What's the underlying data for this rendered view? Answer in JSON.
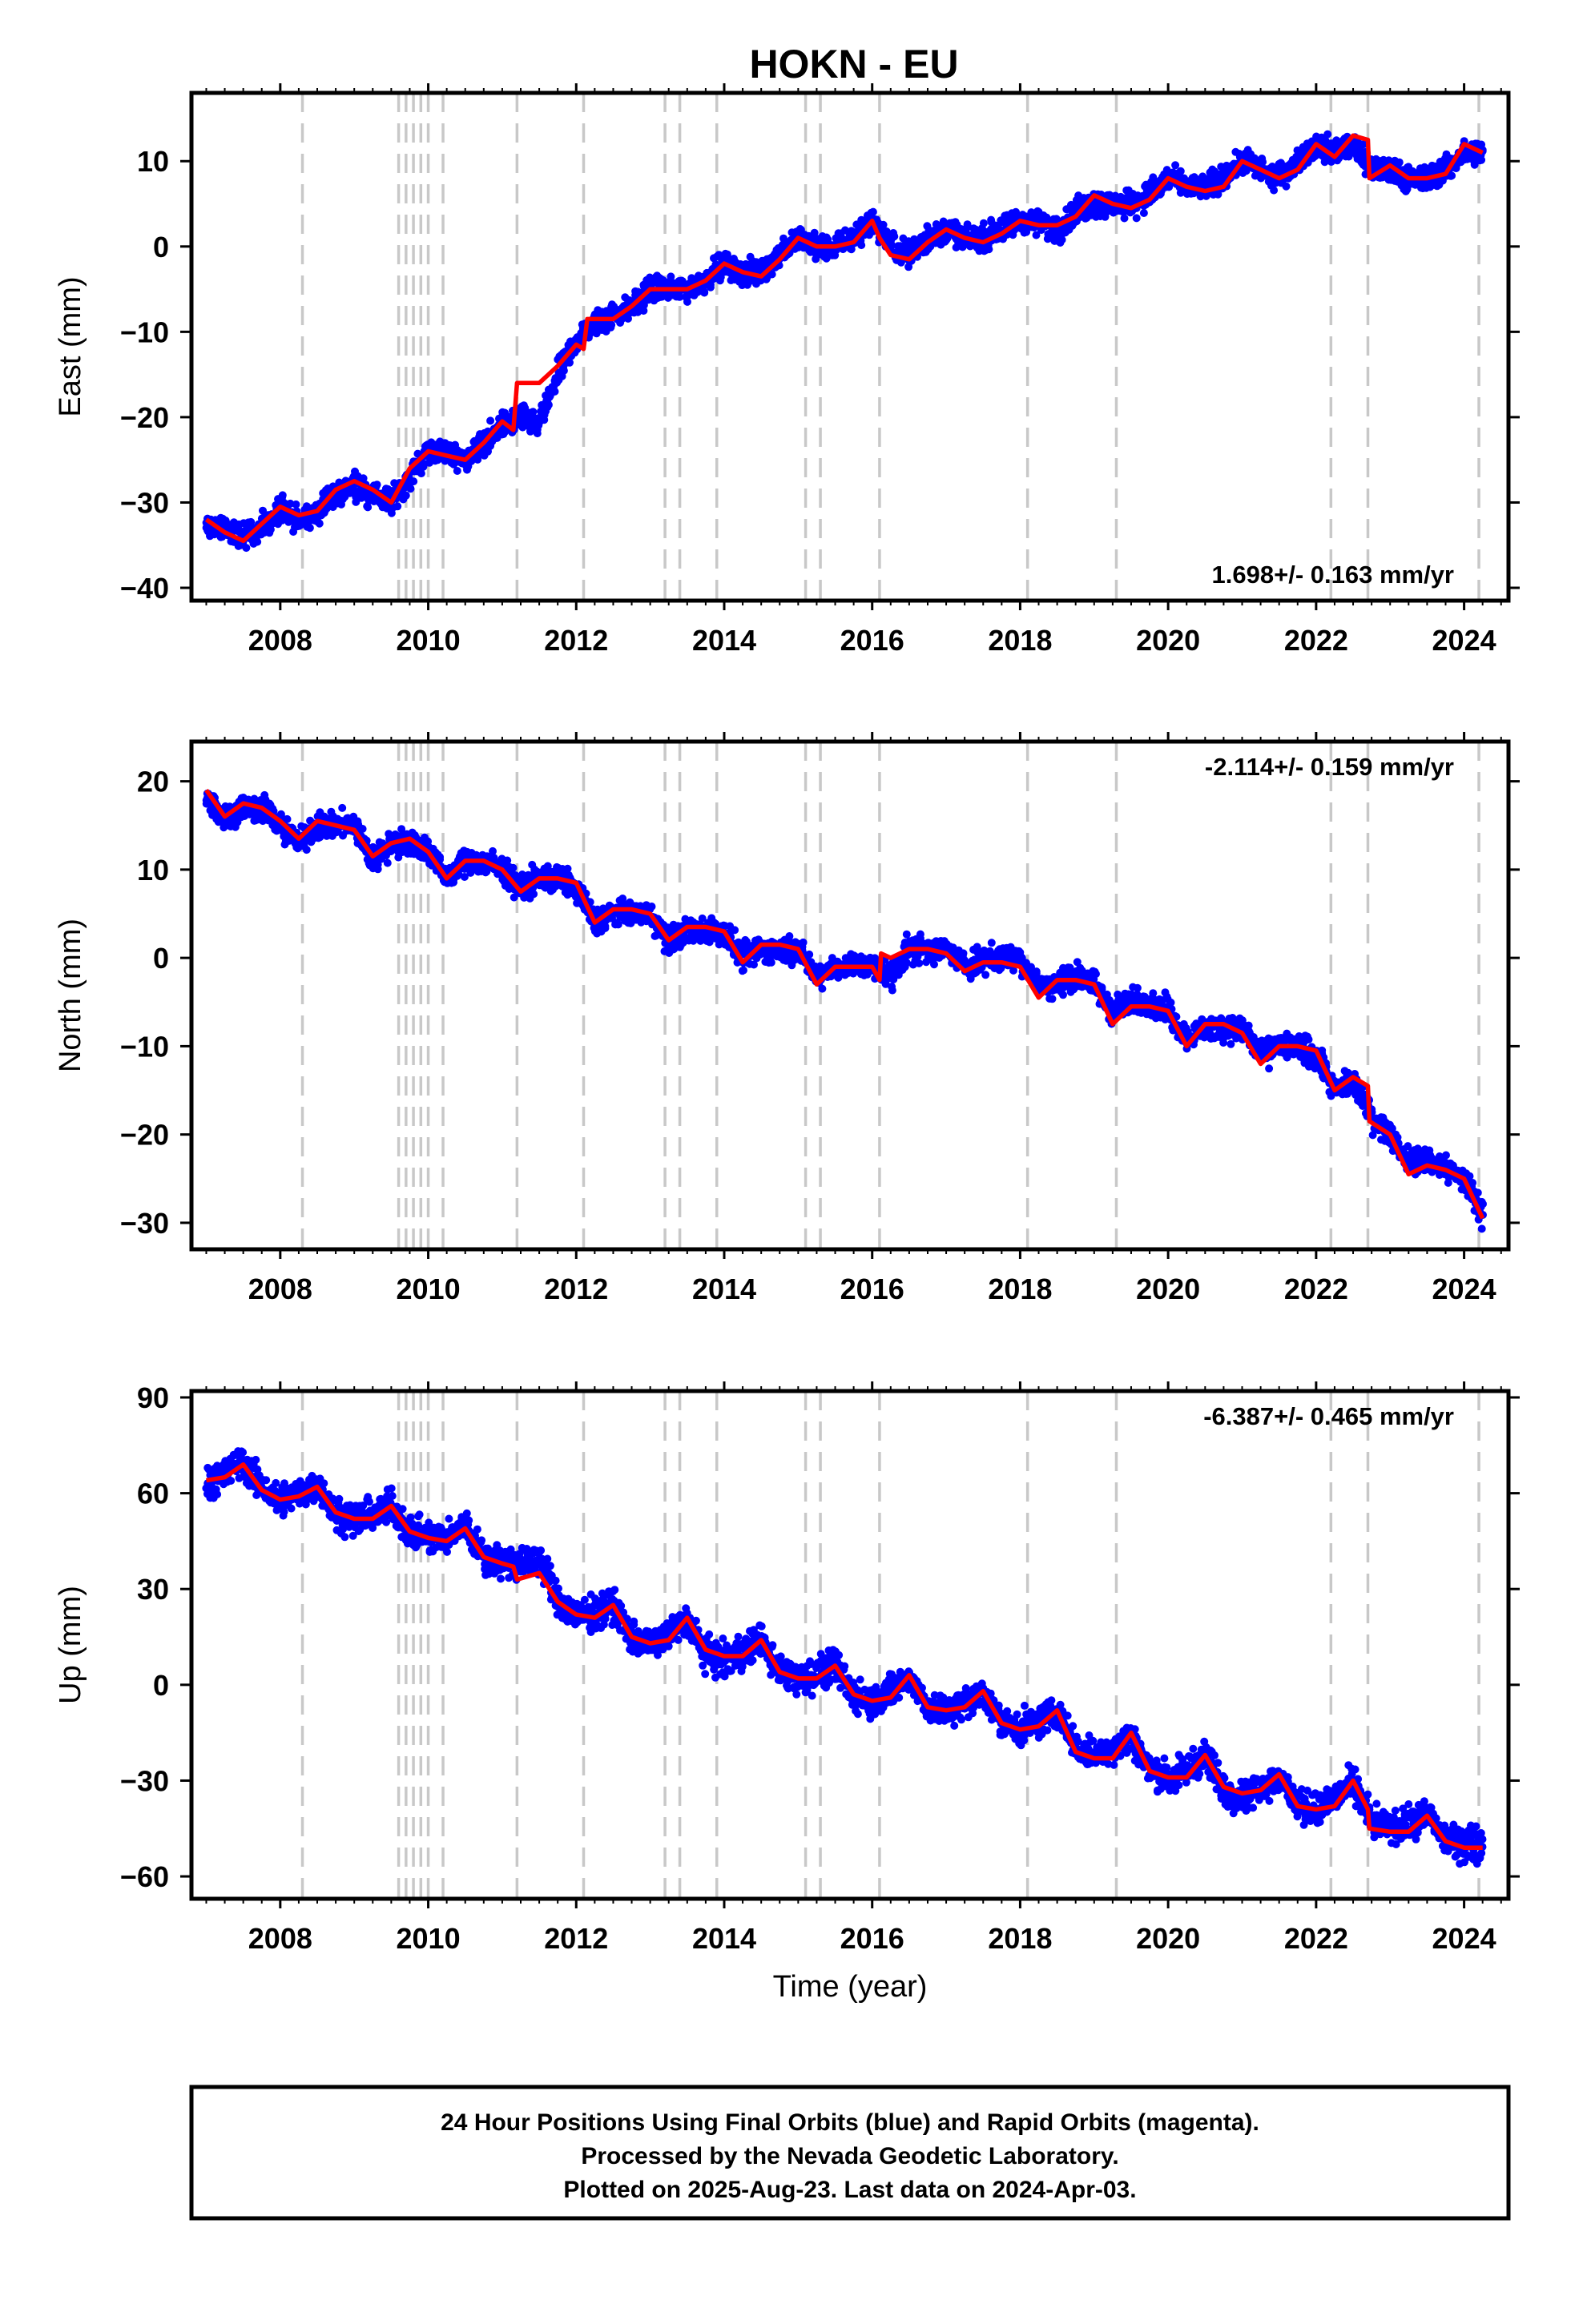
{
  "title": "HOKN - EU",
  "colors": {
    "points": "#0000ff",
    "model": "#ff0000",
    "event_lines": "#c8c8c8",
    "frame": "#000000"
  },
  "chart_data": [
    {
      "type": "scatter",
      "title": "HOKN - EU",
      "ylabel": "East (mm)",
      "xlabel": "",
      "xlim": [
        2006.8,
        2024.6
      ],
      "ylim": [
        -41.5,
        18
      ],
      "grid": false,
      "x_ticks": [
        2008,
        2010,
        2012,
        2014,
        2016,
        2018,
        2020,
        2022,
        2024
      ],
      "y_ticks": [
        -40,
        -30,
        -20,
        -10,
        0,
        10
      ],
      "rate_label": "1.698+/- 0.163 mm/yr",
      "rate_position": "bottom-right",
      "event_lines": [
        2008.3,
        2009.6,
        2009.7,
        2009.8,
        2009.9,
        2010.0,
        2010.2,
        2011.2,
        2012.1,
        2013.2,
        2013.4,
        2013.9,
        2015.1,
        2015.3,
        2016.1,
        2018.1,
        2019.3,
        2022.2,
        2022.7,
        2024.2
      ],
      "series": [
        {
          "kind": "daily_positions",
          "color": "#0000ff",
          "x": [
            2007.0,
            2007.25,
            2007.5,
            2007.75,
            2008.0,
            2008.25,
            2008.5,
            2008.75,
            2009.0,
            2009.25,
            2009.5,
            2009.75,
            2010.0,
            2010.25,
            2010.5,
            2010.75,
            2011.0,
            2011.25,
            2011.5,
            2011.75,
            2012.0,
            2012.25,
            2012.5,
            2012.75,
            2013.0,
            2013.25,
            2013.5,
            2013.75,
            2014.0,
            2014.25,
            2014.5,
            2014.75,
            2015.0,
            2015.25,
            2015.5,
            2015.75,
            2016.0,
            2016.25,
            2016.5,
            2016.75,
            2017.0,
            2017.25,
            2017.5,
            2017.75,
            2018.0,
            2018.25,
            2018.5,
            2018.75,
            2019.0,
            2019.25,
            2019.5,
            2019.75,
            2020.0,
            2020.25,
            2020.5,
            2020.75,
            2021.0,
            2021.25,
            2021.5,
            2021.75,
            2022.0,
            2022.25,
            2022.5,
            2022.75,
            2023.0,
            2023.25,
            2023.5,
            2023.75,
            2024.0,
            2024.25
          ],
          "y": [
            -33,
            -33,
            -34,
            -33,
            -31,
            -32,
            -31,
            -29,
            -28,
            -29,
            -30,
            -27,
            -24,
            -24,
            -25,
            -23,
            -21,
            -20,
            -21,
            -15,
            -11,
            -9,
            -8,
            -7,
            -5,
            -5,
            -5,
            -4,
            -2,
            -3,
            -3,
            -1,
            1,
            0,
            0,
            1,
            3,
            0,
            -1,
            1,
            2,
            1,
            1,
            2,
            3,
            3,
            2,
            4,
            5,
            5,
            5,
            6,
            8,
            7,
            7,
            8,
            10,
            9,
            8,
            10,
            12,
            11,
            12,
            9,
            9,
            8,
            8,
            9,
            11,
            11
          ]
        },
        {
          "kind": "model_fit",
          "color": "#ff0000",
          "x": [
            2007.0,
            2007.25,
            2007.5,
            2007.75,
            2008.0,
            2008.25,
            2008.5,
            2008.75,
            2009.0,
            2009.25,
            2009.5,
            2009.75,
            2010.0,
            2010.25,
            2010.5,
            2010.75,
            2011.0,
            2011.15,
            2011.2,
            2011.5,
            2011.75,
            2012.0,
            2012.1,
            2012.15,
            2012.5,
            2012.75,
            2013.0,
            2013.25,
            2013.5,
            2013.75,
            2014.0,
            2014.25,
            2014.5,
            2014.75,
            2015.0,
            2015.25,
            2015.5,
            2015.75,
            2016.0,
            2016.1,
            2016.25,
            2016.5,
            2016.75,
            2017.0,
            2017.25,
            2017.5,
            2017.75,
            2018.0,
            2018.25,
            2018.5,
            2018.75,
            2019.0,
            2019.25,
            2019.5,
            2019.75,
            2020.0,
            2020.25,
            2020.5,
            2020.75,
            2021.0,
            2021.25,
            2021.5,
            2021.75,
            2022.0,
            2022.25,
            2022.5,
            2022.7,
            2022.72,
            2023.0,
            2023.25,
            2023.5,
            2023.75,
            2024.0,
            2024.25
          ],
          "y": [
            -32,
            -33.5,
            -34.5,
            -32.5,
            -30.5,
            -31.5,
            -31,
            -28.5,
            -27.5,
            -28.5,
            -30,
            -26,
            -24,
            -24.5,
            -25,
            -23,
            -20.5,
            -21.5,
            -16,
            -16,
            -14,
            -11.5,
            -12,
            -8.5,
            -8.5,
            -7,
            -5,
            -5,
            -5,
            -4,
            -2,
            -3,
            -3.5,
            -1.5,
            1,
            0,
            0,
            0.5,
            3,
            1,
            -1,
            -1.5,
            0.5,
            2,
            1,
            0.5,
            1.5,
            3,
            2.5,
            2.5,
            3.5,
            6,
            5,
            4.5,
            5.5,
            8,
            7,
            6.5,
            7,
            10,
            9,
            8,
            9,
            12,
            10.5,
            13,
            12.5,
            8,
            9.5,
            8,
            8,
            8.5,
            12,
            11
          ]
        }
      ]
    },
    {
      "type": "scatter",
      "title": "",
      "ylabel": "North (mm)",
      "xlabel": "",
      "xlim": [
        2006.8,
        2024.6
      ],
      "ylim": [
        -33,
        24.5
      ],
      "grid": false,
      "x_ticks": [
        2008,
        2010,
        2012,
        2014,
        2016,
        2018,
        2020,
        2022,
        2024
      ],
      "y_ticks": [
        -30,
        -20,
        -10,
        0,
        10,
        20
      ],
      "rate_label": "-2.114+/- 0.159 mm/yr",
      "rate_position": "top-right",
      "event_lines": [
        2008.3,
        2009.6,
        2009.7,
        2009.8,
        2009.9,
        2010.0,
        2010.2,
        2011.2,
        2012.1,
        2013.2,
        2013.4,
        2013.9,
        2015.1,
        2015.3,
        2016.1,
        2018.1,
        2019.3,
        2022.2,
        2022.7,
        2024.2
      ],
      "series": [
        {
          "kind": "daily_positions",
          "color": "#0000ff",
          "x": [
            2007.0,
            2007.25,
            2007.5,
            2007.75,
            2008.0,
            2008.25,
            2008.5,
            2008.75,
            2009.0,
            2009.25,
            2009.5,
            2009.75,
            2010.0,
            2010.25,
            2010.5,
            2010.75,
            2011.0,
            2011.25,
            2011.5,
            2011.75,
            2012.0,
            2012.25,
            2012.5,
            2012.75,
            2013.0,
            2013.25,
            2013.5,
            2013.75,
            2014.0,
            2014.25,
            2014.5,
            2014.75,
            2015.0,
            2015.25,
            2015.5,
            2015.75,
            2016.0,
            2016.25,
            2016.5,
            2016.75,
            2017.0,
            2017.25,
            2017.5,
            2017.75,
            2018.0,
            2018.25,
            2018.5,
            2018.75,
            2019.0,
            2019.25,
            2019.5,
            2019.75,
            2020.0,
            2020.25,
            2020.5,
            2020.75,
            2021.0,
            2021.25,
            2021.5,
            2021.75,
            2022.0,
            2022.25,
            2022.5,
            2022.75,
            2023.0,
            2023.25,
            2023.5,
            2023.75,
            2024.0,
            2024.25
          ],
          "y": [
            18,
            16,
            17,
            17,
            15,
            13,
            15,
            15,
            15,
            11,
            13,
            13,
            12,
            9,
            11,
            11,
            10,
            8,
            9,
            9,
            8,
            4,
            5,
            5,
            5,
            2,
            3,
            3,
            3,
            0,
            1,
            1,
            1,
            -2,
            -1,
            -1,
            -1,
            -2,
            1,
            1,
            1,
            -1,
            0,
            0,
            0,
            -3,
            -3,
            -2,
            -3,
            -6,
            -5,
            -5,
            -6,
            -9,
            -8,
            -8,
            -8,
            -11,
            -10,
            -10,
            -11,
            -15,
            -14,
            -18,
            -20,
            -23,
            -23,
            -24,
            -25,
            -29
          ]
        },
        {
          "kind": "model_fit",
          "color": "#ff0000",
          "x": [
            2007.0,
            2007.25,
            2007.5,
            2007.75,
            2008.0,
            2008.25,
            2008.5,
            2008.75,
            2009.0,
            2009.25,
            2009.5,
            2009.75,
            2010.0,
            2010.25,
            2010.5,
            2010.75,
            2011.0,
            2011.25,
            2011.5,
            2011.75,
            2012.0,
            2012.25,
            2012.5,
            2012.75,
            2013.0,
            2013.25,
            2013.5,
            2013.75,
            2014.0,
            2014.25,
            2014.5,
            2014.75,
            2015.0,
            2015.25,
            2015.5,
            2015.75,
            2016.0,
            2016.1,
            2016.12,
            2016.25,
            2016.5,
            2016.75,
            2017.0,
            2017.25,
            2017.5,
            2017.75,
            2018.0,
            2018.25,
            2018.5,
            2018.75,
            2019.0,
            2019.25,
            2019.5,
            2019.75,
            2020.0,
            2020.25,
            2020.5,
            2020.75,
            2021.0,
            2021.25,
            2021.5,
            2021.75,
            2022.0,
            2022.25,
            2022.5,
            2022.7,
            2022.72,
            2023.0,
            2023.25,
            2023.5,
            2023.75,
            2024.0,
            2024.25
          ],
          "y": [
            19,
            16,
            17.5,
            17,
            15.5,
            13.5,
            15.5,
            15,
            14.5,
            11.5,
            13,
            13.5,
            12,
            9,
            11,
            11,
            10,
            7.5,
            9,
            9,
            8.5,
            4,
            5.5,
            5.5,
            5,
            2,
            3.5,
            3.5,
            3,
            -0.5,
            1.5,
            1.5,
            1,
            -3,
            -1,
            -1,
            -1,
            -2.5,
            0.5,
            0,
            1,
            1,
            0.5,
            -1.5,
            -0.5,
            -0.5,
            -1,
            -4.5,
            -2.5,
            -2.5,
            -3,
            -7.5,
            -5.5,
            -5.5,
            -6,
            -10,
            -7.5,
            -7.5,
            -8.5,
            -12,
            -10,
            -10,
            -10.5,
            -15,
            -13.5,
            -14.5,
            -18.5,
            -20,
            -24.5,
            -23.5,
            -24,
            -25,
            -29.5
          ]
        }
      ]
    },
    {
      "type": "scatter",
      "title": "",
      "ylabel": "Up (mm)",
      "xlabel": "Time (year)",
      "xlim": [
        2006.8,
        2024.6
      ],
      "ylim": [
        -67,
        92
      ],
      "grid": false,
      "x_ticks": [
        2008,
        2010,
        2012,
        2014,
        2016,
        2018,
        2020,
        2022,
        2024
      ],
      "y_ticks": [
        -60,
        -30,
        0,
        30,
        60,
        90
      ],
      "rate_label": "-6.387+/- 0.465 mm/yr",
      "rate_position": "top-right",
      "event_lines": [
        2008.3,
        2009.6,
        2009.7,
        2009.8,
        2009.9,
        2010.0,
        2010.2,
        2011.2,
        2012.1,
        2013.2,
        2013.4,
        2013.9,
        2015.1,
        2015.3,
        2016.1,
        2018.1,
        2019.3,
        2022.2,
        2022.7,
        2024.2
      ],
      "series": [
        {
          "kind": "daily_positions",
          "color": "#0000ff",
          "x": [
            2007.0,
            2007.25,
            2007.5,
            2007.75,
            2008.0,
            2008.25,
            2008.5,
            2008.75,
            2009.0,
            2009.25,
            2009.5,
            2009.75,
            2010.0,
            2010.25,
            2010.5,
            2010.75,
            2011.0,
            2011.25,
            2011.5,
            2011.75,
            2012.0,
            2012.25,
            2012.5,
            2012.75,
            2013.0,
            2013.25,
            2013.5,
            2013.75,
            2014.0,
            2014.25,
            2014.5,
            2014.75,
            2015.0,
            2015.25,
            2015.5,
            2015.75,
            2016.0,
            2016.25,
            2016.5,
            2016.75,
            2017.0,
            2017.25,
            2017.5,
            2017.75,
            2018.0,
            2018.25,
            2018.5,
            2018.75,
            2019.0,
            2019.25,
            2019.5,
            2019.75,
            2020.0,
            2020.25,
            2020.5,
            2020.75,
            2021.0,
            2021.25,
            2021.5,
            2021.75,
            2022.0,
            2022.25,
            2022.5,
            2022.75,
            2023.0,
            2023.25,
            2023.5,
            2023.75,
            2024.0,
            2024.25
          ],
          "y": [
            63,
            66,
            70,
            62,
            58,
            60,
            62,
            54,
            52,
            53,
            56,
            48,
            46,
            46,
            50,
            40,
            38,
            38,
            40,
            26,
            22,
            22,
            25,
            15,
            13,
            16,
            20,
            10,
            8,
            10,
            14,
            4,
            2,
            3,
            6,
            -3,
            -5,
            -2,
            2,
            -7,
            -8,
            -6,
            -2,
            -12,
            -14,
            -12,
            -8,
            -20,
            -22,
            -20,
            -16,
            -27,
            -29,
            -27,
            -22,
            -33,
            -35,
            -32,
            -29,
            -38,
            -39,
            -35,
            -31,
            -43,
            -45,
            -44,
            -40,
            -48,
            -50,
            -50
          ]
        },
        {
          "kind": "model_fit",
          "color": "#ff0000",
          "x": [
            2007.0,
            2007.25,
            2007.5,
            2007.75,
            2008.0,
            2008.25,
            2008.5,
            2008.75,
            2009.0,
            2009.25,
            2009.5,
            2009.75,
            2010.0,
            2010.25,
            2010.5,
            2010.75,
            2011.0,
            2011.15,
            2011.2,
            2011.5,
            2011.75,
            2012.0,
            2012.25,
            2012.5,
            2012.75,
            2013.0,
            2013.25,
            2013.5,
            2013.75,
            2014.0,
            2014.25,
            2014.5,
            2014.75,
            2015.0,
            2015.25,
            2015.5,
            2015.75,
            2016.0,
            2016.25,
            2016.5,
            2016.75,
            2017.0,
            2017.25,
            2017.5,
            2017.75,
            2018.0,
            2018.25,
            2018.5,
            2018.75,
            2019.0,
            2019.25,
            2019.5,
            2019.75,
            2020.0,
            2020.25,
            2020.5,
            2020.75,
            2021.0,
            2021.25,
            2021.5,
            2021.75,
            2022.0,
            2022.25,
            2022.5,
            2022.7,
            2022.72,
            2023.0,
            2023.25,
            2023.5,
            2023.75,
            2024.0,
            2024.25
          ],
          "y": [
            64,
            65,
            69,
            61,
            58,
            59,
            62,
            54,
            52,
            52,
            56,
            48,
            46,
            45,
            49,
            40,
            38,
            37,
            33,
            35,
            26,
            22,
            21,
            25,
            15,
            13,
            14,
            21,
            11,
            9,
            9,
            14,
            4,
            2,
            2,
            6,
            -3,
            -5,
            -4,
            3,
            -7,
            -8,
            -7,
            -2,
            -12,
            -14,
            -13,
            -8,
            -21,
            -23,
            -23,
            -15,
            -27,
            -29,
            -29,
            -22,
            -32,
            -34,
            -33,
            -28,
            -38,
            -39,
            -38,
            -30,
            -39,
            -45,
            -46,
            -46,
            -41,
            -49,
            -51,
            -51
          ]
        }
      ]
    }
  ],
  "footer": {
    "line1": "24 Hour Positions Using Final Orbits (blue) and Rapid Orbits (magenta).",
    "line2": "Processed by the Nevada Geodetic Laboratory.",
    "line3": "Plotted on 2025-Aug-23. Last data on 2024-Apr-03."
  }
}
